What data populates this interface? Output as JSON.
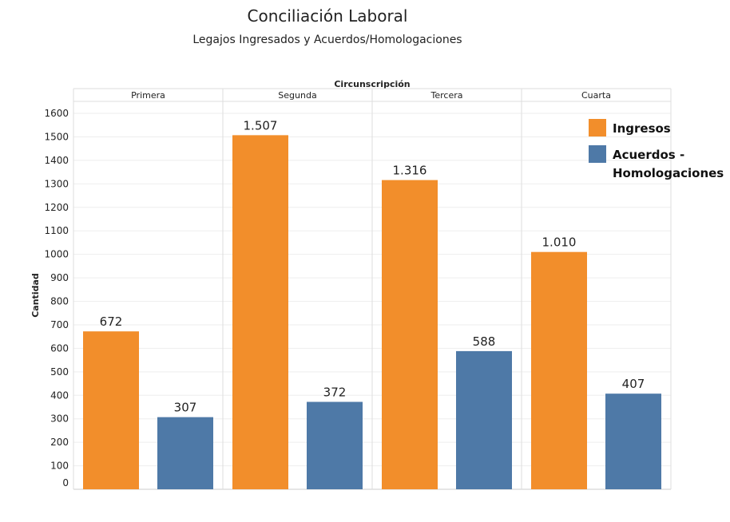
{
  "chart_data": {
    "type": "bar",
    "title": "Conciliación Laboral",
    "subtitle": "Legajos Ingresados y Acuerdos/Homologaciones",
    "facet_label": "Circunscripción",
    "categories": [
      "Primera",
      "Segunda",
      "Tercera",
      "Cuarta"
    ],
    "ylabel": "Cantidad",
    "ylim": [
      0,
      1600
    ],
    "yticks": [
      0,
      100,
      200,
      300,
      400,
      500,
      600,
      700,
      800,
      900,
      1000,
      1100,
      1200,
      1300,
      1400,
      1500,
      1600
    ],
    "grid": true,
    "legend_position": "top-right",
    "series": [
      {
        "name": "Ingresos",
        "color": "#F28E2B",
        "values": [
          672,
          1507,
          1316,
          1010
        ],
        "labels": [
          "672",
          "1.507",
          "1.316",
          "1.010"
        ]
      },
      {
        "name": "Acuerdos - Homologaciones",
        "color": "#4E79A7",
        "values": [
          307,
          372,
          588,
          407
        ],
        "labels": [
          "307",
          "372",
          "588",
          "407"
        ]
      }
    ],
    "legend_lines": [
      [
        "Ingresos"
      ],
      [
        "Acuerdos -",
        "Homologaciones"
      ]
    ]
  }
}
